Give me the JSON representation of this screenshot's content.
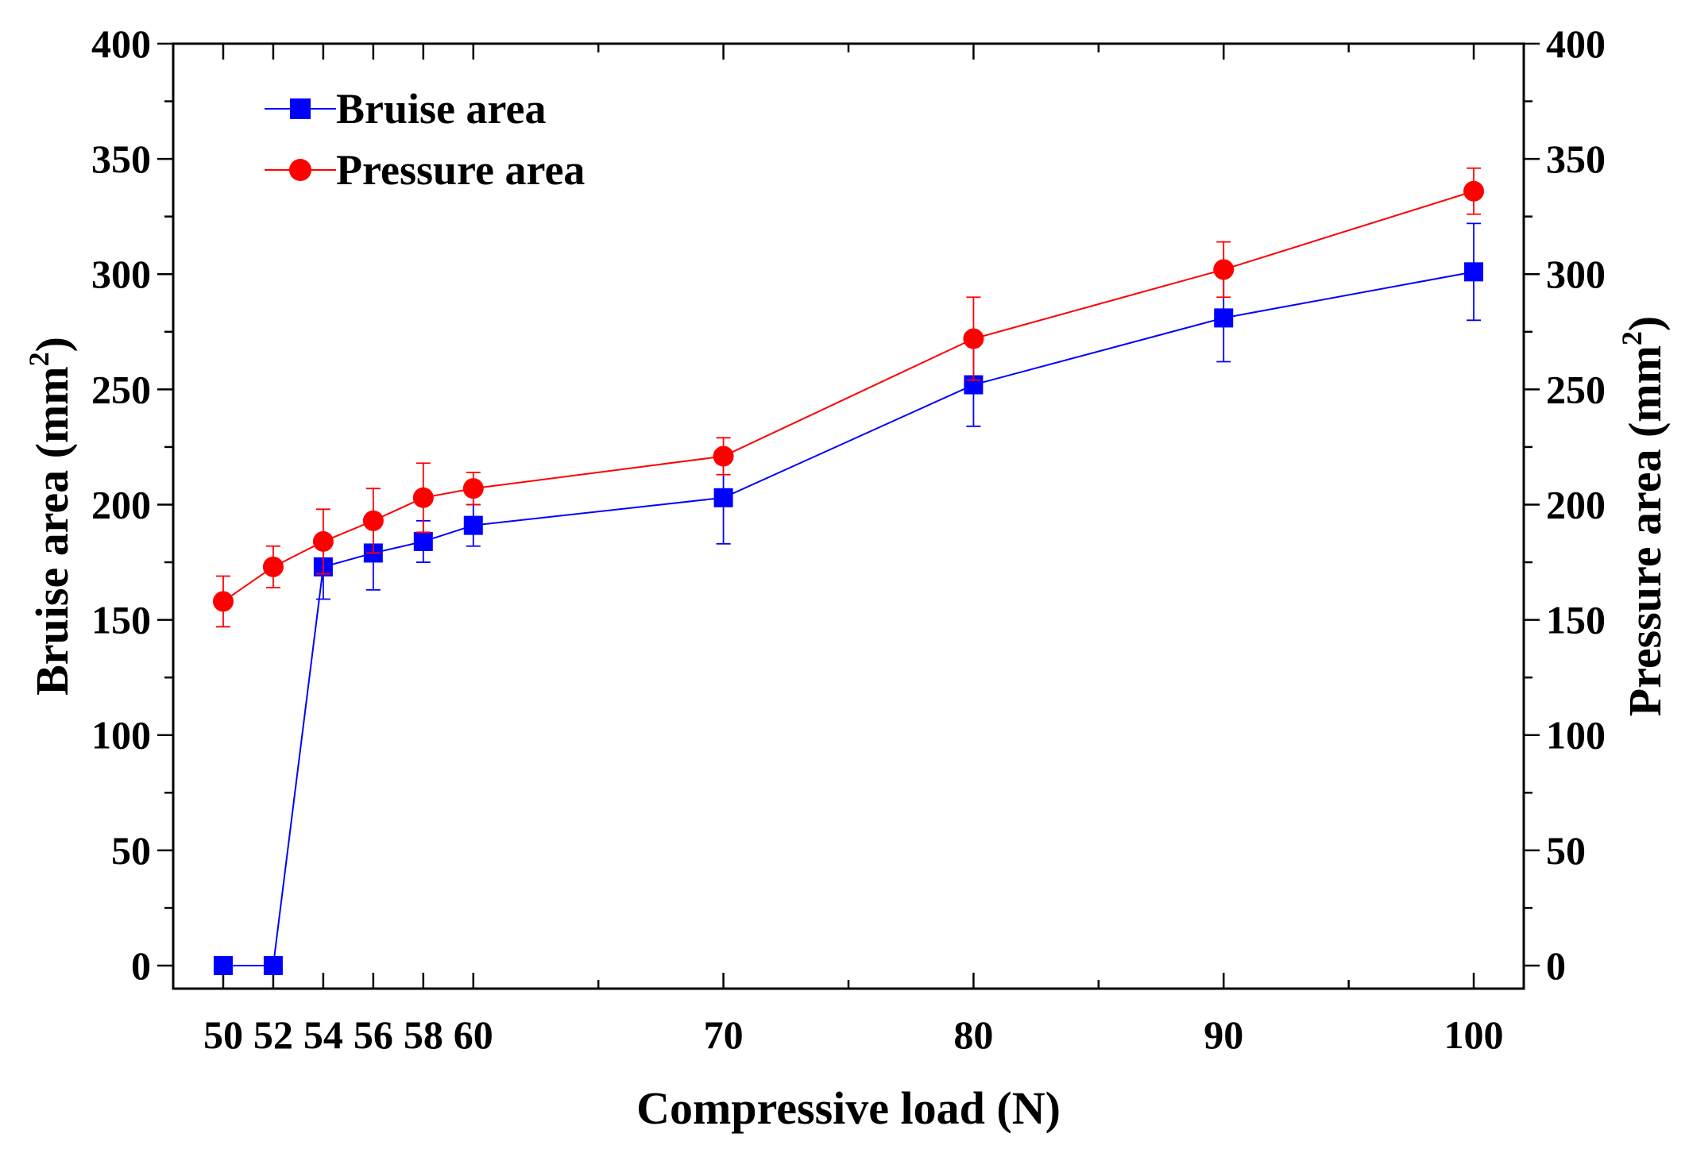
{
  "chart_data": {
    "type": "line",
    "title": "",
    "xlabel": "Compressive load (N)",
    "ylabel_left": {
      "text": "Bruise area (mm",
      "sup": "2",
      "tail": ")"
    },
    "ylabel_right": {
      "text": "Pressure area (mm",
      "sup": "2",
      "tail": ")"
    },
    "xlim": [
      48,
      102
    ],
    "ylim": [
      -10,
      400
    ],
    "x_ticks": [
      50,
      52,
      54,
      56,
      58,
      60,
      70,
      80,
      90,
      100
    ],
    "x_tick_labels": [
      "50",
      "52",
      "54",
      "56",
      "58",
      "60",
      "70",
      "80",
      "90",
      "100"
    ],
    "x_minor_ticks": [
      65,
      75,
      85,
      95
    ],
    "y_ticks": [
      0,
      50,
      100,
      150,
      200,
      250,
      300,
      350,
      400
    ],
    "y_tick_labels": [
      "0",
      "50",
      "100",
      "150",
      "200",
      "250",
      "300",
      "350",
      "400"
    ],
    "y_minor_ticks": [
      25,
      75,
      125,
      175,
      225,
      275,
      325,
      375
    ],
    "legend_position": "top-left",
    "series": [
      {
        "name": "Bruise area",
        "axis": "left",
        "marker": "square",
        "color": "#0000ff",
        "x": [
          50,
          52,
          54,
          56,
          58,
          60,
          70,
          80,
          90,
          100
        ],
        "y": [
          0,
          0,
          173,
          179,
          184,
          191,
          203,
          252,
          281,
          301
        ],
        "err": [
          0,
          0,
          14,
          16,
          9,
          9,
          20,
          18,
          19,
          21
        ]
      },
      {
        "name": "Pressure area",
        "axis": "right",
        "marker": "circle",
        "color": "#ff0000",
        "x": [
          50,
          52,
          54,
          56,
          58,
          60,
          70,
          80,
          90,
          100
        ],
        "y": [
          158,
          173,
          184,
          193,
          203,
          207,
          221,
          272,
          302,
          336
        ],
        "err": [
          11,
          9,
          14,
          14,
          15,
          7,
          8,
          18,
          12,
          10
        ]
      }
    ]
  }
}
